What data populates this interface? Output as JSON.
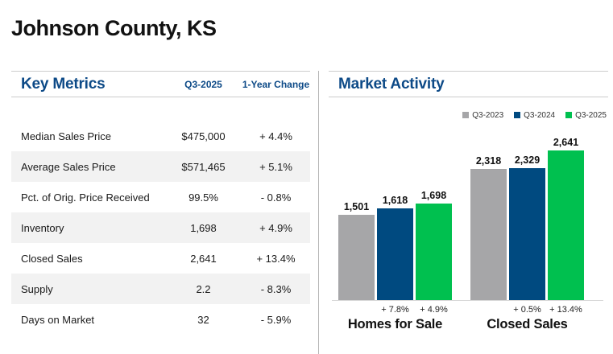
{
  "page": {
    "title": "Johnson County, KS"
  },
  "key_metrics": {
    "heading": "Key Metrics",
    "columns": {
      "period": "Q3-2025",
      "change": "1-Year Change"
    },
    "rows": [
      {
        "label": "Median Sales Price",
        "value": "$475,000",
        "change": "+ 4.4%"
      },
      {
        "label": "Average Sales Price",
        "value": "$571,465",
        "change": "+ 5.1%"
      },
      {
        "label": "Pct. of Orig. Price Received",
        "value": "99.5%",
        "change": "- 0.8%"
      },
      {
        "label": "Inventory",
        "value": "1,698",
        "change": "+ 4.9%"
      },
      {
        "label": "Closed Sales",
        "value": "2,641",
        "change": "+ 13.4%"
      },
      {
        "label": "Supply",
        "value": "2.2",
        "change": "- 8.3%"
      },
      {
        "label": "Days on Market",
        "value": "32",
        "change": "- 5.9%"
      }
    ]
  },
  "market_activity": {
    "heading": "Market Activity"
  },
  "chart_data": {
    "type": "bar",
    "title": "Market Activity",
    "categories": [
      "Homes for Sale",
      "Closed Sales"
    ],
    "series": [
      {
        "name": "Q3-2023",
        "color": "#a6a6a8",
        "values": [
          1501,
          2318
        ]
      },
      {
        "name": "Q3-2024",
        "color": "#004a80",
        "values": [
          1618,
          2329
        ]
      },
      {
        "name": "Q3-2025",
        "color": "#00c04f",
        "values": [
          1698,
          2641
        ]
      }
    ],
    "value_labels": [
      [
        "1,501",
        "1,618",
        "1,698"
      ],
      [
        "2,318",
        "2,329",
        "2,641"
      ]
    ],
    "pct_change_labels": [
      [
        "",
        "+ 7.8%",
        "+ 4.9%"
      ],
      [
        "",
        "+ 0.5%",
        "+ 13.4%"
      ]
    ],
    "xlabel": "",
    "ylabel": "",
    "ylim": [
      0,
      3124
    ],
    "grid": false,
    "legend_position": "top-right"
  },
  "colors": {
    "heading_blue": "#0d4a87",
    "alt_row": "#f2f2f2",
    "axis_line": "#d9d9d9",
    "divider": "#b5b5b5"
  }
}
